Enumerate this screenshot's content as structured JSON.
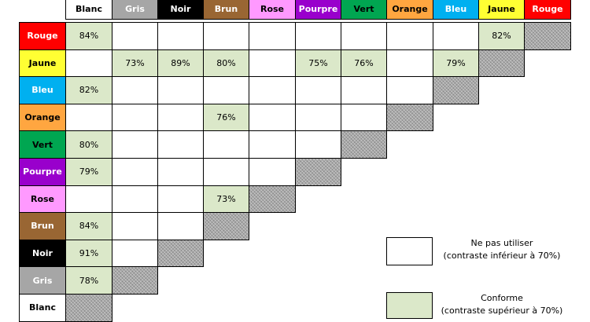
{
  "columns": [
    {
      "label": "Blanc",
      "bg": "#ffffff",
      "fg": "#000000"
    },
    {
      "label": "Gris",
      "bg": "#a6a6a6",
      "fg": "#ffffff"
    },
    {
      "label": "Noir",
      "bg": "#000000",
      "fg": "#ffffff"
    },
    {
      "label": "Brun",
      "bg": "#996633",
      "fg": "#ffffff"
    },
    {
      "label": "Rose",
      "bg": "#ff99ff",
      "fg": "#000000"
    },
    {
      "label": "Pourpre",
      "bg": "#9900cc",
      "fg": "#ffffff"
    },
    {
      "label": "Vert",
      "bg": "#00a651",
      "fg": "#000000"
    },
    {
      "label": "Orange",
      "bg": "#ffa640",
      "fg": "#000000"
    },
    {
      "label": "Bleu",
      "bg": "#00b0f0",
      "fg": "#ffffff"
    },
    {
      "label": "Jaune",
      "bg": "#ffff33",
      "fg": "#000000"
    },
    {
      "label": "Rouge",
      "bg": "#ff0000",
      "fg": "#ffffff"
    }
  ],
  "rows": [
    {
      "label": "Rouge",
      "bg": "#ff0000",
      "fg": "#ffffff",
      "cells": [
        "84%",
        "",
        "",
        "",
        "",
        "",
        "",
        "",
        "",
        "82%",
        "X"
      ]
    },
    {
      "label": "Jaune",
      "bg": "#ffff33",
      "fg": "#000000",
      "cells": [
        "",
        "73%",
        "89%",
        "80%",
        "",
        "75%",
        "76%",
        "",
        "79%",
        "X"
      ]
    },
    {
      "label": "Bleu",
      "bg": "#00b0f0",
      "fg": "#ffffff",
      "cells": [
        "82%",
        "",
        "",
        "",
        "",
        "",
        "",
        "",
        "X"
      ]
    },
    {
      "label": "Orange",
      "bg": "#ffa640",
      "fg": "#000000",
      "cells": [
        "",
        "",
        "",
        "76%",
        "",
        "",
        "",
        "X"
      ]
    },
    {
      "label": "Vert",
      "bg": "#00a651",
      "fg": "#000000",
      "cells": [
        "80%",
        "",
        "",
        "",
        "",
        "",
        "X"
      ]
    },
    {
      "label": "Pourpre",
      "bg": "#9900cc",
      "fg": "#ffffff",
      "cells": [
        "79%",
        "",
        "",
        "",
        "",
        "X"
      ]
    },
    {
      "label": "Rose",
      "bg": "#ff99ff",
      "fg": "#000000",
      "cells": [
        "",
        "",
        "",
        "73%",
        "X"
      ]
    },
    {
      "label": "Brun",
      "bg": "#996633",
      "fg": "#ffffff",
      "cells": [
        "84%",
        "",
        "",
        "X"
      ]
    },
    {
      "label": "Noir",
      "bg": "#000000",
      "fg": "#ffffff",
      "cells": [
        "91%",
        "",
        "X"
      ]
    },
    {
      "label": "Gris",
      "bg": "#a6a6a6",
      "fg": "#ffffff",
      "cells": [
        "78%",
        "X"
      ]
    },
    {
      "label": "Blanc",
      "bg": "#ffffff",
      "fg": "#000000",
      "cells": [
        "X"
      ]
    }
  ],
  "colors": {
    "conforme": "#dbe8c9",
    "blank": "#ffffff",
    "hatched": "#a8a8a8"
  },
  "legend": {
    "do_not_use_title": "Ne pas utiliser",
    "do_not_use_desc": "(contraste inférieur à 70%)",
    "compliant_title": "Conforme",
    "compliant_desc": "(contraste supérieur à 70%)"
  }
}
